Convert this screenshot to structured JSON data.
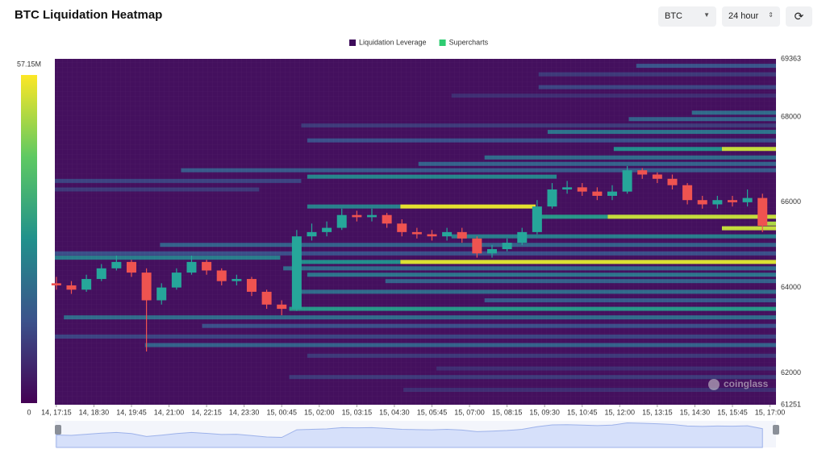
{
  "chart_data": {
    "type": "heatmap",
    "title": "BTC Liquidation Heatmap",
    "controls": {
      "symbol": "BTC",
      "range": "24 hour"
    },
    "watermark": "coinglass",
    "xlim": [
      17.2,
      41.2
    ],
    "xticks": [
      {
        "value": 17.25,
        "label": "14, 17:15"
      },
      {
        "value": 18.5,
        "label": "14, 18:30"
      },
      {
        "value": 19.75,
        "label": "14, 19:45"
      },
      {
        "value": 21,
        "label": "14, 21:00"
      },
      {
        "value": 22.25,
        "label": "14, 22:15"
      },
      {
        "value": 23.5,
        "label": "14, 23:30"
      },
      {
        "value": 24.75,
        "label": "15, 00:45"
      },
      {
        "value": 26,
        "label": "15, 02:00"
      },
      {
        "value": 27.25,
        "label": "15, 03:15"
      },
      {
        "value": 28.5,
        "label": "15, 04:30"
      },
      {
        "value": 29.75,
        "label": "15, 05:45"
      },
      {
        "value": 31,
        "label": "15, 07:00"
      },
      {
        "value": 32.25,
        "label": "15, 08:15"
      },
      {
        "value": 33.5,
        "label": "15, 09:30"
      },
      {
        "value": 34.75,
        "label": "15, 10:45"
      },
      {
        "value": 36,
        "label": "15, 12:00"
      },
      {
        "value": 37.25,
        "label": "15, 13:15"
      },
      {
        "value": 38.5,
        "label": "15, 14:30"
      },
      {
        "value": 39.75,
        "label": "15, 15:45"
      },
      {
        "value": 41,
        "label": "15, 17:00"
      }
    ],
    "ylim": [
      61251,
      69363
    ],
    "yticks": [
      61251,
      62000,
      64000,
      66000,
      68000,
      69363
    ],
    "colorbar": {
      "lim": [
        0,
        57.15
      ],
      "ticks": [
        {
          "value": 57.15,
          "label": "57.15M"
        },
        0
      ],
      "colors": [
        "#440154",
        "#3b528b",
        "#21918c",
        "#5ec962",
        "#fde725"
      ]
    },
    "background": "#44105e",
    "series": [
      {
        "name": "Liquidation Leverage",
        "color": "#3d0b5a",
        "type": "heatmap",
        "bands": [
          {
            "price": 69200,
            "start": 36.55,
            "end": 41.2,
            "value": 15
          },
          {
            "price": 69000,
            "start": 33.3,
            "end": 41.2,
            "value": 10
          },
          {
            "price": 68700,
            "start": 33.3,
            "end": 41.2,
            "value": 12
          },
          {
            "price": 68500,
            "start": 30.4,
            "end": 41.2,
            "value": 8
          },
          {
            "price": 68100,
            "start": 38.4,
            "end": 41.2,
            "value": 20
          },
          {
            "price": 67950,
            "start": 36.3,
            "end": 41.2,
            "value": 18
          },
          {
            "price": 67800,
            "start": 25.4,
            "end": 41.2,
            "value": 10
          },
          {
            "price": 67650,
            "start": 33.6,
            "end": 41.2,
            "value": 22
          },
          {
            "price": 67450,
            "start": 25.6,
            "end": 41.2,
            "value": 14
          },
          {
            "price": 67250,
            "start": 35.8,
            "end": 39.4,
            "value": 28
          },
          {
            "price": 67250,
            "start": 39.4,
            "end": 41.2,
            "value": 52
          },
          {
            "price": 67050,
            "start": 31.5,
            "end": 41.2,
            "value": 20
          },
          {
            "price": 66900,
            "start": 29.3,
            "end": 41.2,
            "value": 18
          },
          {
            "price": 66750,
            "start": 21.4,
            "end": 41.2,
            "value": 16
          },
          {
            "price": 66600,
            "start": 25.6,
            "end": 33.9,
            "value": 26
          },
          {
            "price": 66500,
            "start": 17.2,
            "end": 25.4,
            "value": 12
          },
          {
            "price": 66300,
            "start": 17.2,
            "end": 24,
            "value": 10
          },
          {
            "price": 65900,
            "start": 25.6,
            "end": 28.7,
            "value": 25
          },
          {
            "price": 65900,
            "start": 28.7,
            "end": 33.2,
            "value": 55
          },
          {
            "price": 65660,
            "start": 33.2,
            "end": 35.6,
            "value": 30
          },
          {
            "price": 65660,
            "start": 35.6,
            "end": 41.2,
            "value": 52
          },
          {
            "price": 65500,
            "start": 40.6,
            "end": 41.2,
            "value": 50
          },
          {
            "price": 65390,
            "start": 39.4,
            "end": 41.2,
            "value": 52
          },
          {
            "price": 65200,
            "start": 30.4,
            "end": 41.2,
            "value": 24
          },
          {
            "price": 65000,
            "start": 20.7,
            "end": 41.2,
            "value": 18
          },
          {
            "price": 64800,
            "start": 17.2,
            "end": 41.2,
            "value": 14
          },
          {
            "price": 64700,
            "start": 17.2,
            "end": 24.7,
            "value": 24
          },
          {
            "price": 64600,
            "start": 25.3,
            "end": 28.7,
            "value": 28
          },
          {
            "price": 64600,
            "start": 28.7,
            "end": 41.2,
            "value": 54
          },
          {
            "price": 64450,
            "start": 24.8,
            "end": 41.2,
            "value": 20
          },
          {
            "price": 64300,
            "start": 25.6,
            "end": 41.2,
            "value": 22
          },
          {
            "price": 64150,
            "start": 28.2,
            "end": 41.2,
            "value": 18
          },
          {
            "price": 63900,
            "start": 25.3,
            "end": 41.2,
            "value": 20
          },
          {
            "price": 63700,
            "start": 31.5,
            "end": 41.2,
            "value": 16
          },
          {
            "price": 63500,
            "start": 25,
            "end": 41.2,
            "value": 30
          },
          {
            "price": 63300,
            "start": 17.5,
            "end": 41.2,
            "value": 20
          },
          {
            "price": 63100,
            "start": 22.1,
            "end": 41.2,
            "value": 14
          },
          {
            "price": 62850,
            "start": 17.2,
            "end": 41.2,
            "value": 12
          },
          {
            "price": 62650,
            "start": 20.2,
            "end": 41.2,
            "value": 18
          },
          {
            "price": 62400,
            "start": 25.6,
            "end": 41.2,
            "value": 10
          },
          {
            "price": 62100,
            "start": 29.9,
            "end": 41.2,
            "value": 8
          },
          {
            "price": 61900,
            "start": 25,
            "end": 41.2,
            "value": 10
          },
          {
            "price": 61600,
            "start": 28.8,
            "end": 41.2,
            "value": 8
          }
        ]
      },
      {
        "name": "Supercharts",
        "color": "#2ecc71",
        "type": "candlestick",
        "up_color": "#26a69a",
        "down_color": "#ef5350",
        "x": [
          17.25,
          17.75,
          18.25,
          18.75,
          19.25,
          19.75,
          20.25,
          20.75,
          21.25,
          21.75,
          22.25,
          22.75,
          23.25,
          23.75,
          24.25,
          24.75,
          25.25,
          25.75,
          26.25,
          26.75,
          27.25,
          27.75,
          28.25,
          28.75,
          29.25,
          29.75,
          30.25,
          30.75,
          31.25,
          31.75,
          32.25,
          32.75,
          33.25,
          33.75,
          34.25,
          34.75,
          35.25,
          35.75,
          36.25,
          36.75,
          37.25,
          37.75,
          38.25,
          38.75,
          39.25,
          39.75,
          40.25,
          40.75
        ],
        "open": [
          64100,
          64050,
          63950,
          64200,
          64450,
          64600,
          64350,
          63700,
          64000,
          64350,
          64600,
          64400,
          64150,
          64200,
          63900,
          63600,
          63500,
          65200,
          65300,
          65400,
          65700,
          65650,
          65700,
          65500,
          65300,
          65250,
          65200,
          65300,
          65150,
          64800,
          64900,
          65050,
          65300,
          65900,
          66300,
          66350,
          66250,
          66150,
          66250,
          66750,
          66650,
          66550,
          66400,
          66050,
          65950,
          66050,
          66000,
          66100
        ],
        "high": [
          64250,
          64150,
          64300,
          64550,
          64750,
          64650,
          64450,
          64100,
          64450,
          64750,
          64650,
          64450,
          64300,
          64250,
          63950,
          63700,
          65350,
          65500,
          65550,
          65850,
          65800,
          65850,
          65750,
          65600,
          65400,
          65350,
          65400,
          65400,
          65200,
          65000,
          65150,
          65400,
          66050,
          66450,
          66500,
          66450,
          66350,
          66400,
          66850,
          66800,
          66700,
          66650,
          66450,
          66150,
          66150,
          66150,
          66300,
          66200
        ],
        "low": [
          63950,
          63850,
          63900,
          64150,
          64400,
          64250,
          62500,
          63600,
          63950,
          64300,
          64300,
          64050,
          64050,
          63800,
          63500,
          63350,
          63450,
          65100,
          65200,
          65350,
          65550,
          65550,
          65400,
          65200,
          65150,
          65100,
          65100,
          65050,
          64700,
          64700,
          64850,
          65000,
          65250,
          65850,
          66200,
          66150,
          66050,
          66050,
          66200,
          66550,
          66450,
          66300,
          65950,
          65850,
          65850,
          65900,
          65900,
          65300
        ],
        "close": [
          64050,
          63950,
          64200,
          64450,
          64600,
          64350,
          63700,
          64000,
          64350,
          64600,
          64400,
          64150,
          64200,
          63900,
          63600,
          63500,
          65200,
          65300,
          65400,
          65700,
          65650,
          65700,
          65500,
          65300,
          65250,
          65200,
          65300,
          65150,
          64800,
          64900,
          65050,
          65300,
          65900,
          66300,
          66350,
          66250,
          66150,
          66250,
          66750,
          66650,
          66550,
          66400,
          66050,
          65950,
          66050,
          66000,
          66100,
          65450
        ]
      }
    ]
  }
}
